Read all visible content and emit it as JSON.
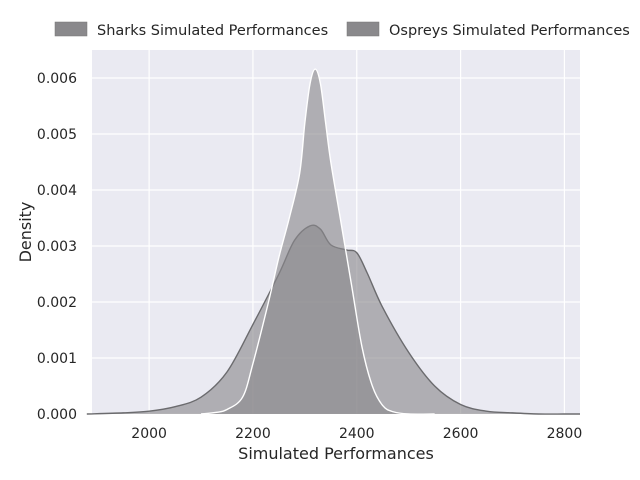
{
  "chart_data": {
    "type": "area",
    "xlabel": "Simulated Performances",
    "ylabel": "Density",
    "xlim": [
      1890,
      2830
    ],
    "ylim": [
      0,
      0.0065
    ],
    "x_ticks": [
      "2000",
      "2200",
      "2400",
      "2600",
      "2800"
    ],
    "x_tick_values": [
      2000,
      2200,
      2400,
      2600,
      2800
    ],
    "y_ticks": [
      "0.000",
      "0.001",
      "0.002",
      "0.003",
      "0.004",
      "0.005",
      "0.006"
    ],
    "y_tick_values": [
      0,
      0.001,
      0.002,
      0.003,
      0.004,
      0.005,
      0.006
    ],
    "grid": true,
    "legend_position": "top",
    "series": [
      {
        "name": "Sharks Simulated Performances",
        "color": "#8a898c",
        "stroke": "#6b6b6e",
        "x": [
          1880,
          1950,
          2000,
          2050,
          2100,
          2150,
          2200,
          2250,
          2280,
          2310,
          2330,
          2350,
          2380,
          2400,
          2420,
          2450,
          2500,
          2550,
          2600,
          2650,
          2700,
          2750,
          2800,
          2830
        ],
        "y": [
          0.0,
          2e-05,
          5e-05,
          0.00013,
          0.0003,
          0.00075,
          0.0016,
          0.0025,
          0.0031,
          0.00336,
          0.0033,
          0.00302,
          0.00293,
          0.00288,
          0.00252,
          0.0019,
          0.0011,
          0.0005,
          0.00017,
          5e-05,
          2e-05,
          0.0,
          0.0,
          0.0
        ]
      },
      {
        "name": "Ospreys Simulated Performances",
        "color": "#8a898c",
        "stroke": "#ffffff",
        "x": [
          2100,
          2130,
          2150,
          2180,
          2200,
          2230,
          2250,
          2270,
          2290,
          2300,
          2310,
          2320,
          2330,
          2340,
          2350,
          2370,
          2390,
          2410,
          2430,
          2450,
          2470,
          2500,
          2550
        ],
        "y": [
          0.0,
          3e-05,
          8e-05,
          0.0003,
          0.0009,
          0.002,
          0.0028,
          0.0035,
          0.0043,
          0.0052,
          0.0059,
          0.00616,
          0.0059,
          0.0052,
          0.0045,
          0.0034,
          0.0023,
          0.0012,
          0.0005,
          0.00015,
          4e-05,
          0.0,
          0.0
        ]
      }
    ]
  }
}
